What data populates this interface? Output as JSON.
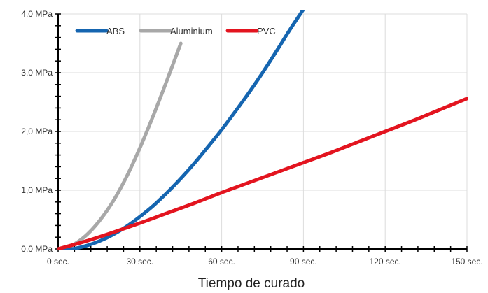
{
  "chart_data": {
    "type": "line",
    "title": "",
    "xlabel": "Tiempo de curado",
    "ylabel": "",
    "xlim": [
      0,
      150
    ],
    "ylim": [
      0,
      4
    ],
    "grid": true,
    "legend_position": "top-left",
    "x_ticks": [
      {
        "value": 0,
        "label": "0 sec."
      },
      {
        "value": 30,
        "label": "30 sec."
      },
      {
        "value": 60,
        "label": "60 sec."
      },
      {
        "value": 90,
        "label": "90 sec."
      },
      {
        "value": 120,
        "label": "120 sec."
      },
      {
        "value": 150,
        "label": "150 sec."
      }
    ],
    "y_ticks": [
      {
        "value": 0,
        "label": "0,0 MPa"
      },
      {
        "value": 1,
        "label": "1,0 MPa"
      },
      {
        "value": 2,
        "label": "2,0 MPa"
      },
      {
        "value": 3,
        "label": "3,0 MPa"
      },
      {
        "value": 4,
        "label": "4,0 MPa"
      }
    ],
    "series": [
      {
        "name": "ABS",
        "color": "#1565b0",
        "x": [
          0,
          5,
          10,
          15,
          20,
          25,
          30,
          35,
          40,
          45,
          50,
          55,
          60,
          65,
          70,
          75,
          80,
          85,
          90,
          91.5
        ],
        "y": [
          0,
          0.0,
          0.05,
          0.13,
          0.24,
          0.38,
          0.55,
          0.74,
          0.96,
          1.2,
          1.46,
          1.74,
          2.03,
          2.34,
          2.66,
          3.0,
          3.36,
          3.73,
          4.08,
          4.2
        ]
      },
      {
        "name": "Aluminium",
        "color": "#a8a8a8",
        "x": [
          0,
          5,
          10,
          15,
          20,
          25,
          30,
          35,
          40,
          45
        ],
        "y": [
          0,
          0.06,
          0.22,
          0.47,
          0.8,
          1.22,
          1.72,
          2.28,
          2.88,
          3.5
        ]
      },
      {
        "name": "PVC",
        "color": "#e3141f",
        "x": [
          0,
          10,
          20,
          30,
          40,
          50,
          60,
          70,
          80,
          90,
          100,
          110,
          120,
          130,
          140,
          150
        ],
        "y": [
          0,
          0.13,
          0.28,
          0.44,
          0.61,
          0.78,
          0.96,
          1.13,
          1.3,
          1.47,
          1.64,
          1.82,
          2.0,
          2.18,
          2.37,
          2.56
        ]
      }
    ]
  }
}
